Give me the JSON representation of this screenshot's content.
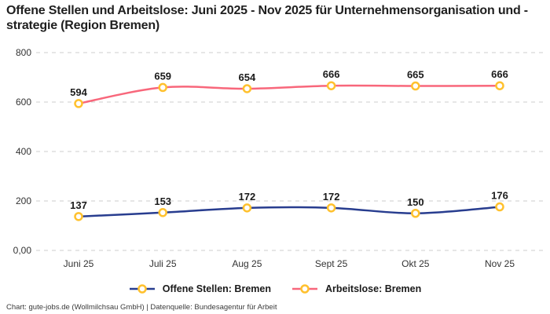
{
  "title": "Offene Stellen und Arbeitslose: Juni 2025 - Nov 2025 für Unternehmensorganisation und -strategie (Region Bremen)",
  "footer": {
    "text": "Chart: gute-jobs.de (Wollmilchsau GmbH) | Datenquelle: Bundesagentur für Arbeit"
  },
  "colors": {
    "offene_stellen_line": "#283D8F",
    "arbeitslose_line": "#F8677B",
    "marker_ring": "#FFC12E",
    "marker_fill": "#FFFFFF",
    "gridline": "#CCCCCC",
    "label_text": "#1A1A1A",
    "tick_text": "#333333"
  },
  "chart_data": {
    "type": "line",
    "title": "Offene Stellen und Arbeitslose: Juni 2025 - Nov 2025 für Unternehmensorganisation und -strategie (Region Bremen)",
    "categories": [
      "Juni 25",
      "Juli 25",
      "Aug 25",
      "Sept 25",
      "Okt 25",
      "Nov 25"
    ],
    "series": [
      {
        "name": "Offene Stellen: Bremen",
        "color": "#283D8F",
        "values": [
          137,
          153,
          172,
          172,
          150,
          176
        ]
      },
      {
        "name": "Arbeitslose: Bremen",
        "color": "#F8677B",
        "values": [
          594,
          659,
          654,
          666,
          665,
          666
        ]
      }
    ],
    "marker": {
      "fill": "#FFFFFF",
      "ring": "#FFC12E"
    },
    "ylim": [
      0,
      800
    ],
    "yticks": [
      {
        "value": 0,
        "label": "0,00"
      },
      {
        "value": 200,
        "label": "200"
      },
      {
        "value": 400,
        "label": "400"
      },
      {
        "value": 600,
        "label": "600"
      },
      {
        "value": 800,
        "label": "800"
      }
    ],
    "grid": "horizontal-dashed",
    "legend_position": "bottom",
    "data_labels": "above-points"
  }
}
